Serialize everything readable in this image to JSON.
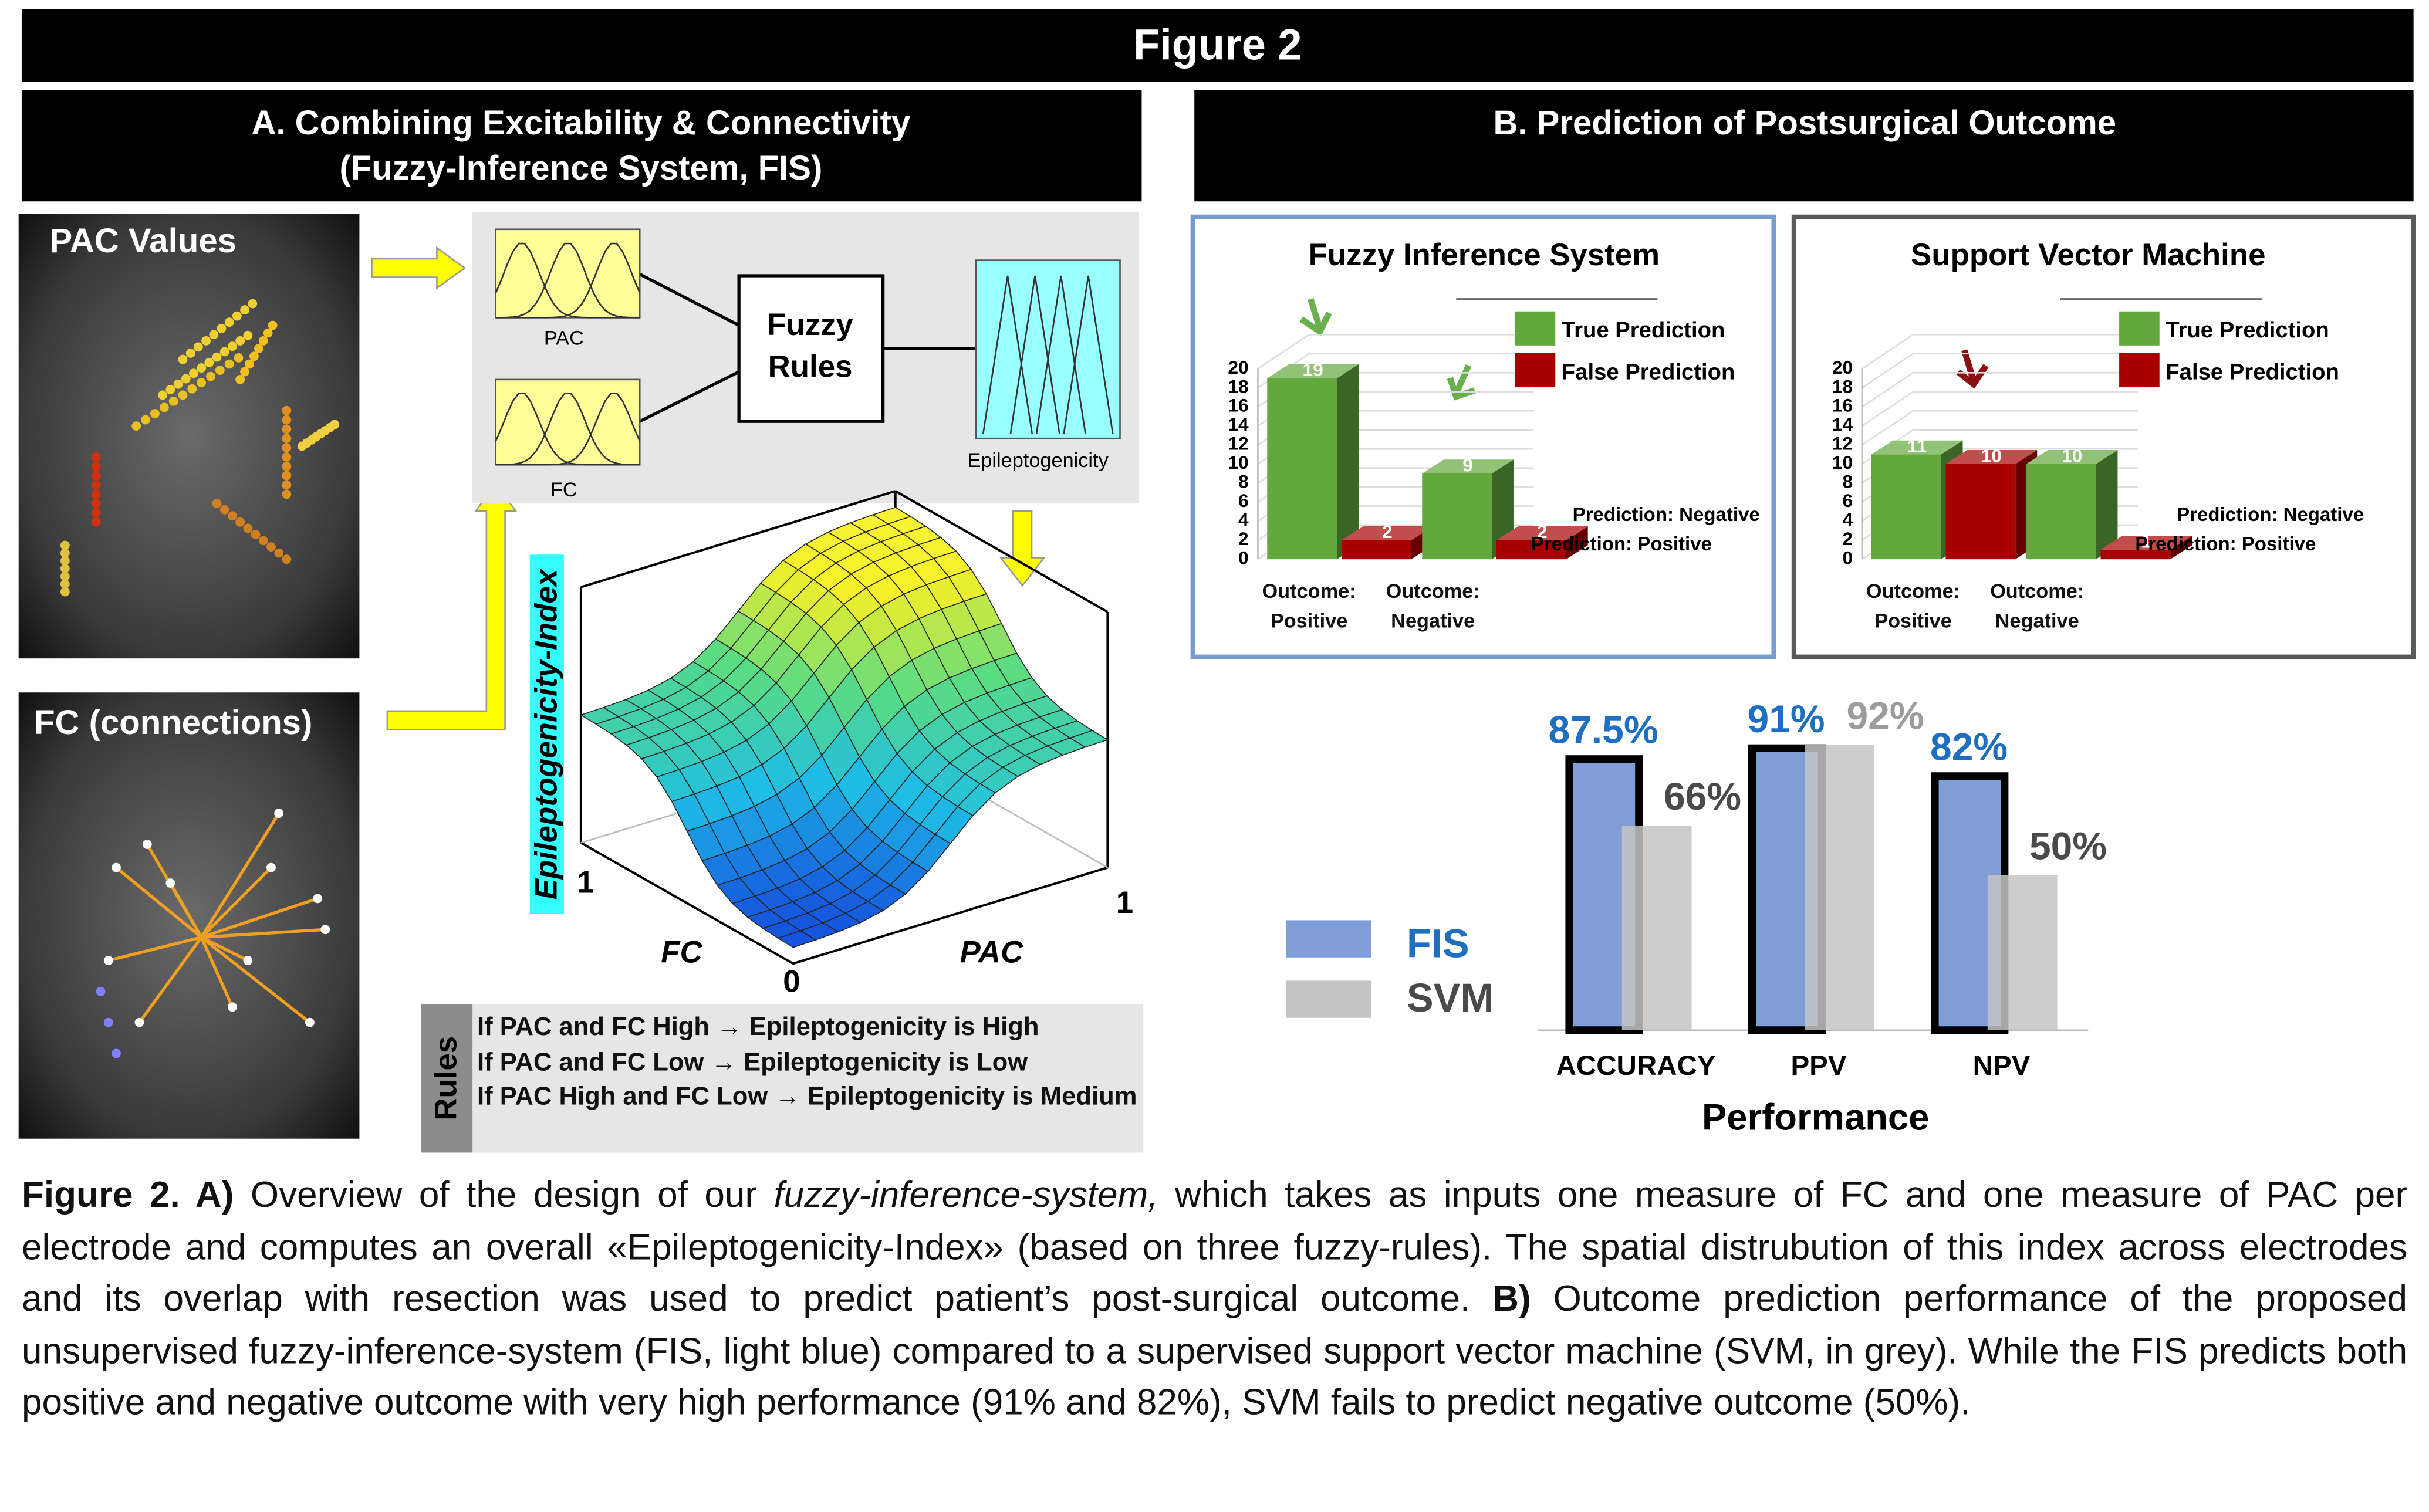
{
  "figure_title": "Figure 2",
  "panel_a": {
    "title_lines": [
      "A. Combining Excitability & Connectivity",
      "(Fuzzy-Inference System, FIS)"
    ],
    "pac_image_label": "PAC Values",
    "fc_image_label": "FC (connections)",
    "fis_diagram": {
      "input_1": "PAC",
      "input_2": "FC",
      "rules_box": [
        "Fuzzy",
        "Rules"
      ],
      "output": "Epileptogenicity"
    },
    "surface": {
      "z_label": "Epileptogenicity-Index",
      "x_label": "FC",
      "y_label": "PAC",
      "fc_max": 1,
      "pac_max": 1,
      "origin": 0
    },
    "rules": {
      "label": "Rules",
      "lines": [
        "If PAC and FC High → Epileptogenicity is High",
        "If PAC and FC Low → Epileptogenicity is Low",
        "If PAC High and FC Low → Epileptogenicity is Medium"
      ]
    }
  },
  "panel_b": {
    "title": "B. Prediction of Postsurgical Outcome"
  },
  "chart_data": [
    {
      "type": "bar3d",
      "title": "Fuzzy Inference System",
      "categories": [
        "Outcome: Positive",
        "Outcome: Negative"
      ],
      "rows": [
        "Prediction: Negative",
        "Prediction: Positive"
      ],
      "series": [
        {
          "name": "True Prediction",
          "color": "#62a83c",
          "values": [
            19,
            9
          ]
        },
        {
          "name": "False Prediction",
          "color": "#a80000",
          "values": [
            2,
            2
          ]
        }
      ],
      "ylim": [
        0,
        20
      ],
      "yticks": [
        0,
        2,
        4,
        6,
        8,
        10,
        12,
        14,
        16,
        18,
        20
      ],
      "frame_color": "#7a9ccc"
    },
    {
      "type": "bar3d",
      "title": "Support Vector Machine",
      "categories": [
        "Outcome: Positive",
        "Outcome: Negative"
      ],
      "rows": [
        "Prediction: Negative",
        "Prediction: Positive"
      ],
      "series": [
        {
          "name": "True Prediction",
          "color": "#62a83c",
          "values": [
            11,
            10
          ]
        },
        {
          "name": "False Prediction",
          "color": "#a80000",
          "values": [
            10,
            1
          ]
        }
      ],
      "ylim": [
        0,
        20
      ],
      "yticks": [
        0,
        2,
        4,
        6,
        8,
        10,
        12,
        14,
        16,
        18,
        20
      ],
      "frame_color": "#5a5a5a"
    },
    {
      "type": "bar",
      "xlabel": "Performance",
      "categories": [
        "ACCURACY",
        "PPV",
        "NPV"
      ],
      "series": [
        {
          "name": "FIS",
          "color": "#7f9ed8",
          "label_color": "#1f6fc0",
          "values": [
            87.5,
            91,
            82
          ],
          "value_labels": [
            "87.5%",
            "91%",
            "82%"
          ]
        },
        {
          "name": "SVM",
          "color": "#c4c4c4",
          "label_color": "#4a4a4a",
          "values": [
            66,
            92,
            50
          ],
          "value_labels": [
            "66%",
            "92%",
            "50%"
          ]
        }
      ]
    }
  ],
  "caption": {
    "parts": [
      "Figure 2. A)",
      " Overview of the design of our ",
      "fuzzy-inference-system,",
      " which takes as inputs one measure of FC and one measure of PAC per electrode and computes an overall «Epileptogenicity-Index» (based on three fuzzy-rules). The spatial distrubution of this index across electrodes and its overlap with resection was used to predict patient’s post-surgical outcome. ",
      "B)",
      " Outcome prediction performance of the proposed unsupervised fuzzy-inference-system (FIS, light blue) compared to a supervised support vector machine (SVM, in grey). While the FIS predicts both positive and negative outcome with very high performance (91% and 82%), SVM fails to predict negative outcome (50%)."
    ]
  }
}
